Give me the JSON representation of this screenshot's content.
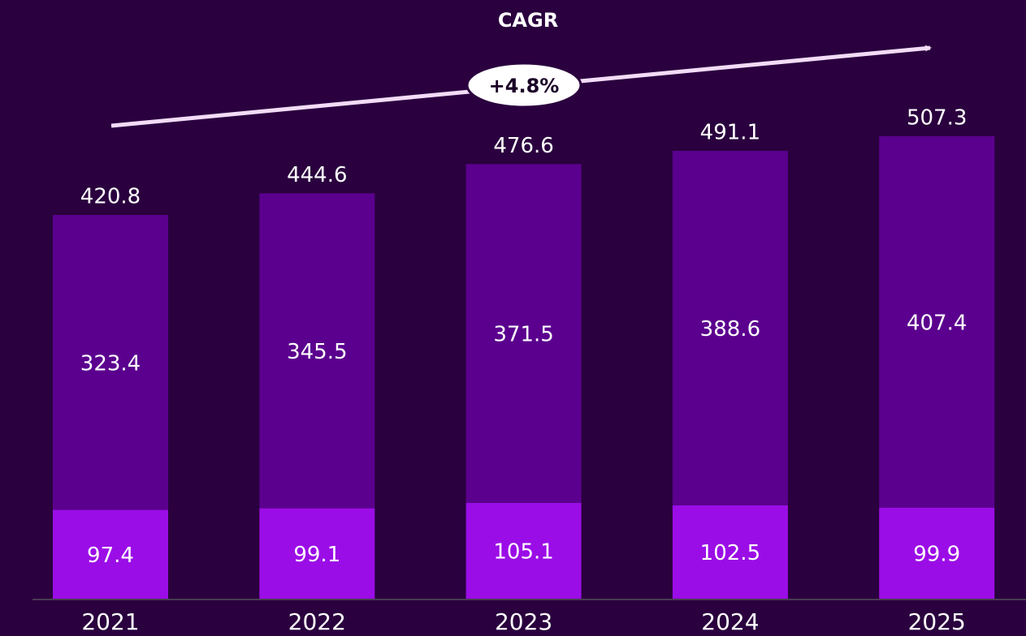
{
  "chart_data": {
    "type": "stacked_bar",
    "title": "CAGR",
    "annotation": "+4.8%",
    "categories": [
      "2021",
      "2022",
      "2023",
      "2024",
      "2025"
    ],
    "series": [
      {
        "color": "#9b0de6",
        "values": [
          97.4,
          99.1,
          105.1,
          102.5,
          99.9
        ]
      },
      {
        "color": "#5b008e",
        "values": [
          323.4,
          345.5,
          371.5,
          388.6,
          407.4
        ]
      }
    ],
    "totals": [
      "420.8",
      "444.6",
      "476.6",
      "491.1",
      "507.3"
    ]
  }
}
